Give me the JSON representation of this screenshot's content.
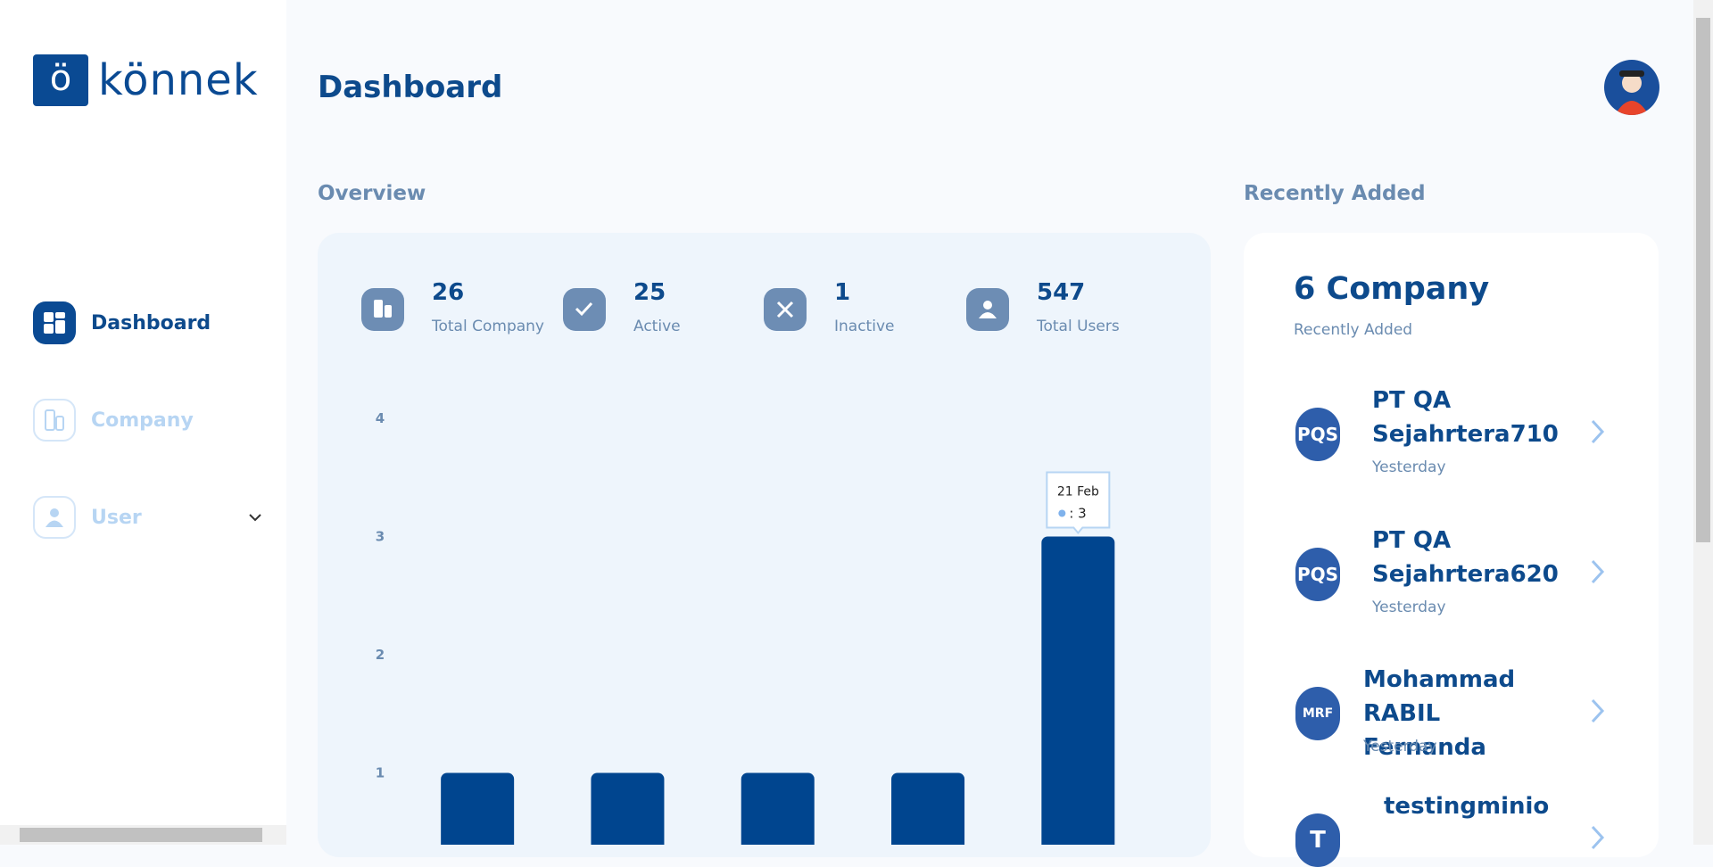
{
  "brand": {
    "mark": "ö",
    "name": "könnek"
  },
  "sidebar": {
    "nav": [
      {
        "label": "Dashboard"
      },
      {
        "label": "Company"
      },
      {
        "label": "User"
      }
    ]
  },
  "header": {
    "title": "Dashboard"
  },
  "overview": {
    "title": "Overview",
    "stats": [
      {
        "value": "26",
        "label": "Total Company"
      },
      {
        "value": "25",
        "label": "Active"
      },
      {
        "value": "1",
        "label": "Inactive"
      },
      {
        "value": "547",
        "label": "Total Users"
      }
    ]
  },
  "chart_data": {
    "type": "bar",
    "categories": [
      null,
      null,
      null,
      null,
      "21 Feb"
    ],
    "values": [
      1,
      1,
      1,
      1,
      3
    ],
    "value_labels": [
      null,
      null,
      null,
      null,
      ": 3"
    ],
    "color": "#00458f",
    "ylim": [
      0,
      4
    ],
    "yticks": [
      1,
      2,
      3,
      4
    ]
  },
  "recent": {
    "title": "Recently Added",
    "count_label": "6 Company",
    "subtitle": "Recently Added",
    "items": [
      {
        "initials": "PQS",
        "name": "PT QA Sejahrtera710",
        "time": "Yesterday"
      },
      {
        "initials": "PQS",
        "name": "PT QA Sejahrtera620",
        "time": "Yesterday"
      },
      {
        "initials": "MRF",
        "name": "Mohammad RABIL Fernanda",
        "time": "Yesterday"
      },
      {
        "initials": "T",
        "name": "testingminio"
      }
    ]
  }
}
